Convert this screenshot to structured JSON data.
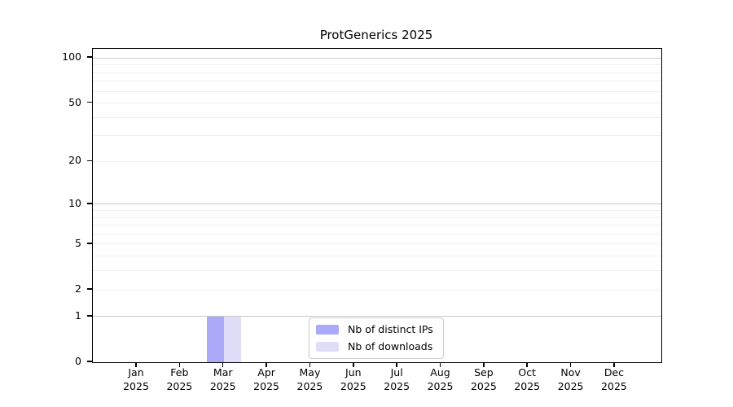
{
  "chart_data": {
    "type": "bar",
    "title": "ProtGenerics 2025",
    "categories": [
      "Jan",
      "Feb",
      "Mar",
      "Apr",
      "May",
      "Jun",
      "Jul",
      "Aug",
      "Sep",
      "Oct",
      "Nov",
      "Dec"
    ],
    "x_tick_year": "2025",
    "series": [
      {
        "name": "Nb of distinct IPs",
        "color": "#aaaaf8",
        "values": [
          0,
          0,
          1,
          0,
          0,
          0,
          0,
          0,
          0,
          0,
          0,
          0
        ]
      },
      {
        "name": "Nb of downloads",
        "color": "#dedef8",
        "values": [
          0,
          0,
          1,
          0,
          0,
          0,
          0,
          0,
          0,
          0,
          0,
          0
        ]
      }
    ],
    "xlabel": "",
    "ylabel": "",
    "yscale": "log10(value+1)",
    "ylim": [
      0,
      115
    ],
    "yticks": [
      0,
      1,
      2,
      5,
      10,
      20,
      50,
      100
    ],
    "major_gridlines": [
      1,
      10,
      100
    ],
    "minor_gridlines": [
      2,
      3,
      4,
      5,
      6,
      7,
      8,
      9,
      20,
      30,
      40,
      50,
      60,
      70,
      80,
      90
    ],
    "grid": "horizontal",
    "legend_position": "bottom-center",
    "colors": {
      "axis": "#000000",
      "text": "#000000",
      "major_grid": "#c9c9c9",
      "minor_grid": "#f0f0f0",
      "legend_border": "#cccccc",
      "background": "#ffffff"
    }
  }
}
